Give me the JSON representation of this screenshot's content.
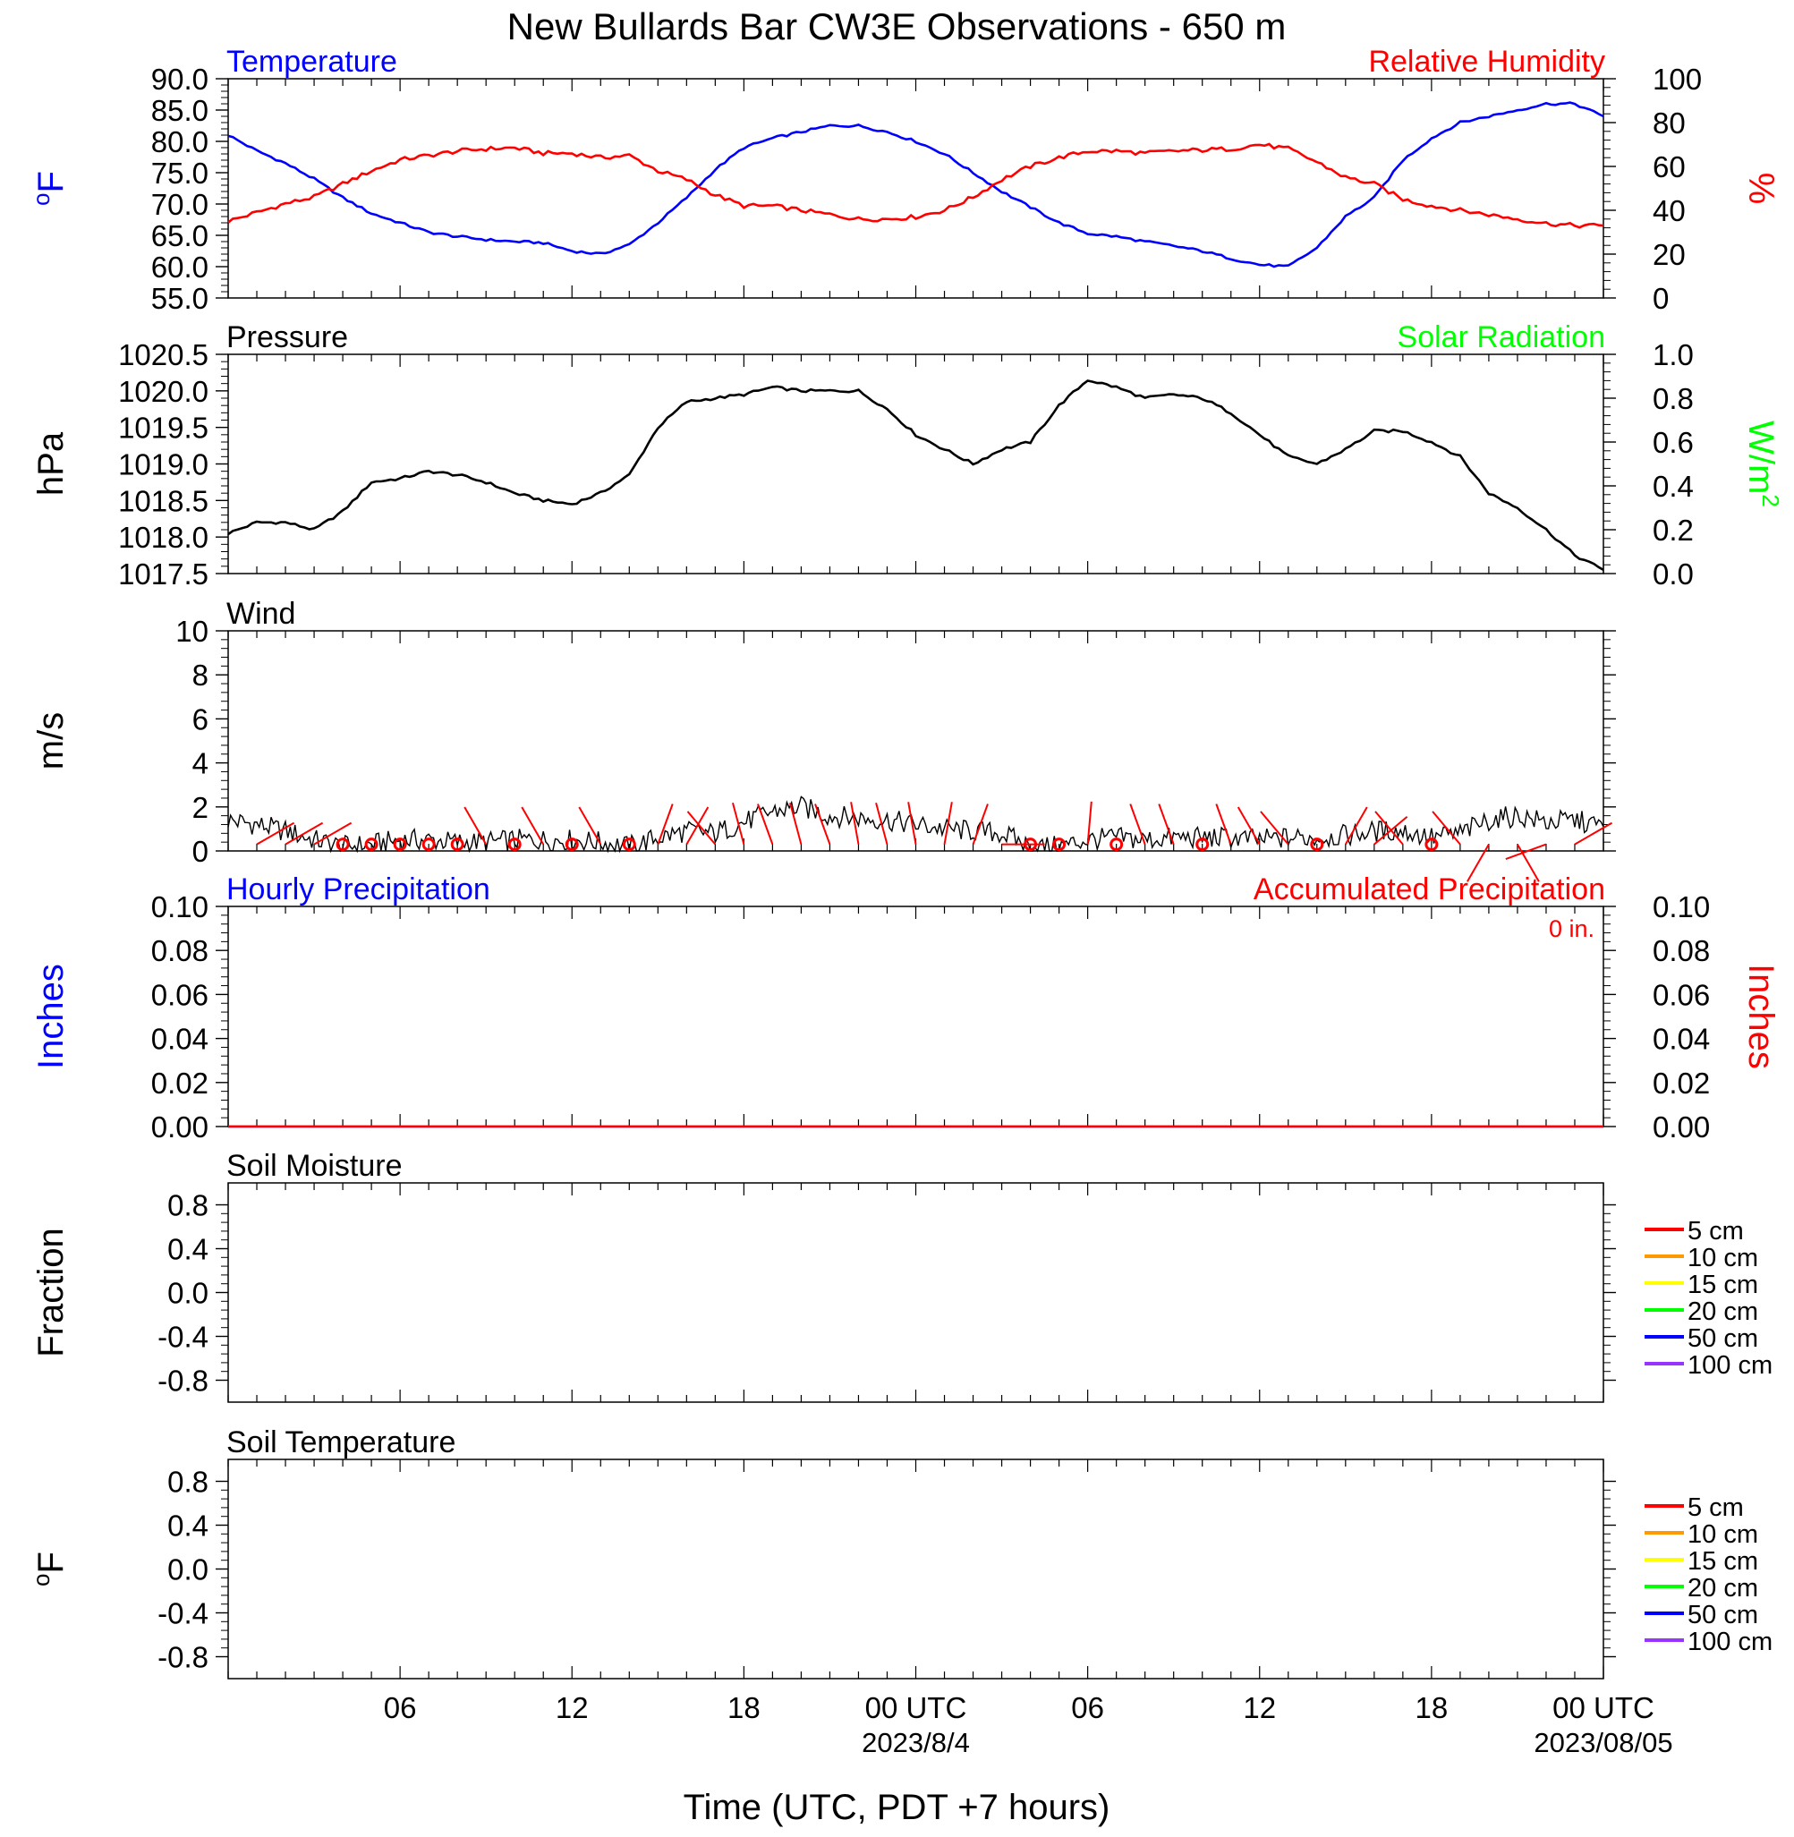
{
  "title": "New Bullards Bar CW3E Observations - 650 m",
  "xlabel": "Time (UTC, PDT +7 hours)",
  "xticks": [
    "06",
    "12",
    "18",
    "00 UTC",
    "06",
    "12",
    "18",
    "00 UTC"
  ],
  "xdates": [
    "2023/8/4",
    "2023/08/05"
  ],
  "colors": {
    "temp": "#0000ff",
    "rh": "#ff0000",
    "pressure": "#000000",
    "solar": "#00ff00",
    "wind": "#000000",
    "barb": "#ff0000",
    "hourly": "#0000ff",
    "accum": "#ff0000"
  },
  "chart_data": [
    {
      "id": "temp_rh",
      "type": "line",
      "left_title": "Temperature",
      "right_title": "Relative Humidity",
      "ylabel": "oF",
      "ylabel_right": "%",
      "ylim": [
        55,
        90
      ],
      "yticks": [
        "55.0",
        "60.0",
        "65.0",
        "70.0",
        "75.0",
        "80.0",
        "85.0",
        "90.0"
      ],
      "ylim_right": [
        0,
        100
      ],
      "yticks_right": [
        "0",
        "20",
        "40",
        "60",
        "80",
        "100"
      ],
      "x_hours": [
        0,
        1,
        2,
        3,
        4,
        5,
        6,
        7,
        8,
        9,
        10,
        11,
        12,
        13,
        14,
        15,
        16,
        17,
        18,
        19,
        20,
        21,
        22,
        23,
        24,
        25,
        26,
        27,
        28,
        29,
        30,
        31,
        32,
        33,
        34,
        35,
        36,
        37,
        38,
        39,
        40,
        41,
        42,
        43,
        44,
        45,
        46,
        47,
        48
      ],
      "series": [
        {
          "name": "Temperature",
          "values": [
            81,
            78.5,
            76.5,
            74,
            71,
            68.5,
            67,
            65.5,
            64.8,
            64.3,
            64,
            63.8,
            62.5,
            62,
            63.5,
            67,
            71,
            75.5,
            79,
            80.5,
            81.5,
            82.5,
            82.5,
            81.5,
            80,
            78,
            75,
            72,
            69.5,
            67,
            65.3,
            64.8,
            64,
            63.3,
            62.5,
            61.3,
            60.3,
            60,
            63,
            68,
            71,
            77,
            80.5,
            83,
            84,
            85,
            86,
            86,
            84
          ]
        },
        {
          "name": "Relative Humidity",
          "values": [
            35,
            39,
            43,
            46,
            52,
            58,
            63,
            65,
            67,
            68,
            68.5,
            66,
            66,
            64,
            65,
            58,
            54,
            47,
            42,
            42,
            40,
            38,
            36,
            36,
            37,
            40,
            46,
            54,
            60,
            64,
            67,
            67,
            66,
            67,
            67.5,
            68,
            70,
            68,
            62,
            55,
            52,
            45,
            42,
            40,
            38,
            36,
            34,
            33,
            33
          ]
        }
      ]
    },
    {
      "id": "pressure",
      "type": "line",
      "left_title": "Pressure",
      "right_title": "Solar Radiation",
      "ylabel": "hPa",
      "ylabel_right": "W/m2",
      "ylim": [
        1017.5,
        1020.5
      ],
      "yticks": [
        "1017.5",
        "1018.0",
        "1018.5",
        "1019.0",
        "1019.5",
        "1020.0",
        "1020.5"
      ],
      "ylim_right": [
        0,
        1.0
      ],
      "yticks_right": [
        "0.0",
        "0.2",
        "0.4",
        "0.6",
        "0.8",
        "1.0"
      ],
      "x_hours": [
        0,
        1,
        2,
        3,
        4,
        5,
        6,
        7,
        8,
        9,
        10,
        11,
        12,
        13,
        14,
        15,
        16,
        17,
        18,
        19,
        20,
        21,
        22,
        23,
        24,
        25,
        26,
        27,
        28,
        29,
        30,
        31,
        32,
        33,
        34,
        35,
        36,
        37,
        38,
        39,
        40,
        41,
        42,
        43,
        44,
        45,
        46,
        47,
        48
      ],
      "series": [
        {
          "name": "Pressure",
          "values": [
            1018.05,
            1018.2,
            1018.2,
            1018.1,
            1018.35,
            1018.75,
            1018.8,
            1018.9,
            1018.85,
            1018.75,
            1018.6,
            1018.5,
            1018.45,
            1018.6,
            1018.85,
            1019.5,
            1019.85,
            1019.9,
            1019.95,
            1020.05,
            1020.0,
            1020.0,
            1020.0,
            1019.75,
            1019.4,
            1019.2,
            1019.0,
            1019.2,
            1019.3,
            1019.8,
            1020.15,
            1020.05,
            1019.9,
            1019.95,
            1019.9,
            1019.7,
            1019.4,
            1019.1,
            1019.0,
            1019.2,
            1019.45,
            1019.45,
            1019.3,
            1019.1,
            1018.6,
            1018.4,
            1018.1,
            1017.75,
            1017.55
          ]
        }
      ]
    },
    {
      "id": "wind",
      "type": "line",
      "left_title": "Wind",
      "ylabel": "m/s",
      "ylim": [
        0,
        10
      ],
      "yticks": [
        "0",
        "2",
        "4",
        "6",
        "8",
        "10"
      ],
      "x_hours": [
        0,
        1,
        2,
        3,
        4,
        5,
        6,
        7,
        8,
        9,
        10,
        11,
        12,
        13,
        14,
        15,
        16,
        17,
        18,
        19,
        20,
        21,
        22,
        23,
        24,
        25,
        26,
        27,
        28,
        29,
        30,
        31,
        32,
        33,
        34,
        35,
        36,
        37,
        38,
        39,
        40,
        41,
        42,
        43,
        44,
        45,
        46,
        47,
        48
      ],
      "series": [
        {
          "name": "Wind",
          "values": [
            1.4,
            1.2,
            0.9,
            0.5,
            0.2,
            0.3,
            0.5,
            0.5,
            0.4,
            0.4,
            0.5,
            0.5,
            0.5,
            0.4,
            0.2,
            0.6,
            0.9,
            0.8,
            1.3,
            1.8,
            2.0,
            1.6,
            1.5,
            1.4,
            1.2,
            1.0,
            0.9,
            0.8,
            0.2,
            0.2,
            0.5,
            0.6,
            0.5,
            0.6,
            0.6,
            0.6,
            0.5,
            0.6,
            0.6,
            0.7,
            0.9,
            0.9,
            0.6,
            0.8,
            1.4,
            1.6,
            1.3,
            1.4,
            1.1
          ]
        }
      ],
      "barbs": {
        "hours": [
          1,
          2,
          3,
          4,
          5,
          6,
          7,
          8,
          9,
          10,
          11,
          12,
          13,
          14,
          15,
          16,
          17,
          18,
          19,
          20,
          21,
          22,
          23,
          24,
          25,
          26,
          27,
          28,
          29,
          30,
          31,
          32,
          33,
          34,
          35,
          36,
          37,
          38,
          39,
          40,
          41,
          42,
          43,
          44,
          45,
          46,
          47
        ],
        "calm": [
          false,
          false,
          false,
          true,
          true,
          true,
          true,
          true,
          false,
          true,
          false,
          true,
          false,
          true,
          false,
          false,
          false,
          false,
          false,
          false,
          false,
          false,
          false,
          false,
          false,
          false,
          false,
          true,
          true,
          false,
          true,
          false,
          false,
          true,
          false,
          false,
          false,
          true,
          false,
          false,
          false,
          true,
          false,
          false,
          false,
          false,
          false
        ],
        "dir_deg": [
          60,
          60,
          60,
          0,
          0,
          0,
          0,
          0,
          330,
          0,
          330,
          0,
          330,
          0,
          20,
          30,
          320,
          345,
          340,
          345,
          340,
          350,
          345,
          350,
          10,
          20,
          90,
          0,
          0,
          5,
          0,
          340,
          340,
          0,
          340,
          330,
          320,
          0,
          30,
          50,
          320,
          0,
          320,
          210,
          150,
          250,
          60
        ]
      }
    },
    {
      "id": "precip",
      "type": "line",
      "left_title": "Hourly Precipitation",
      "right_title": "Accumulated Precipitation",
      "annotation": "0 in.",
      "ylabel": "Inches",
      "ylabel_right": "Inches",
      "ylim": [
        0,
        0.1
      ],
      "yticks": [
        "0.00",
        "0.02",
        "0.04",
        "0.06",
        "0.08",
        "0.10"
      ],
      "yticks_right": [
        "0.00",
        "0.02",
        "0.04",
        "0.06",
        "0.08",
        "0.10"
      ],
      "x_hours": [
        0,
        48
      ],
      "series": [
        {
          "name": "Hourly Precipitation",
          "values": [
            0,
            0
          ]
        },
        {
          "name": "Accumulated Precipitation",
          "values": [
            0,
            0
          ]
        }
      ]
    },
    {
      "id": "soil_moisture",
      "type": "line",
      "left_title": "Soil Moisture",
      "ylabel": "Fraction",
      "ylim": [
        -1,
        1
      ],
      "yticks": [
        "-0.8",
        "-0.4",
        "0.0",
        "0.4",
        "0.8"
      ],
      "legend": [
        {
          "label": "5 cm",
          "color": "#ff0000"
        },
        {
          "label": "10 cm",
          "color": "#ff9900"
        },
        {
          "label": "15 cm",
          "color": "#ffff00"
        },
        {
          "label": "20 cm",
          "color": "#00ff00"
        },
        {
          "label": "50 cm",
          "color": "#0000ff"
        },
        {
          "label": "100 cm",
          "color": "#9933ff"
        }
      ]
    },
    {
      "id": "soil_temp",
      "type": "line",
      "left_title": "Soil Temperature",
      "ylabel": "oF",
      "ylim": [
        -1,
        1
      ],
      "yticks": [
        "-0.8",
        "-0.4",
        "0.0",
        "0.4",
        "0.8"
      ],
      "legend": [
        {
          "label": "5 cm",
          "color": "#ff0000"
        },
        {
          "label": "10 cm",
          "color": "#ff9900"
        },
        {
          "label": "15 cm",
          "color": "#ffff00"
        },
        {
          "label": "20 cm",
          "color": "#00ff00"
        },
        {
          "label": "50 cm",
          "color": "#0000ff"
        },
        {
          "label": "100 cm",
          "color": "#9933ff"
        }
      ]
    }
  ]
}
